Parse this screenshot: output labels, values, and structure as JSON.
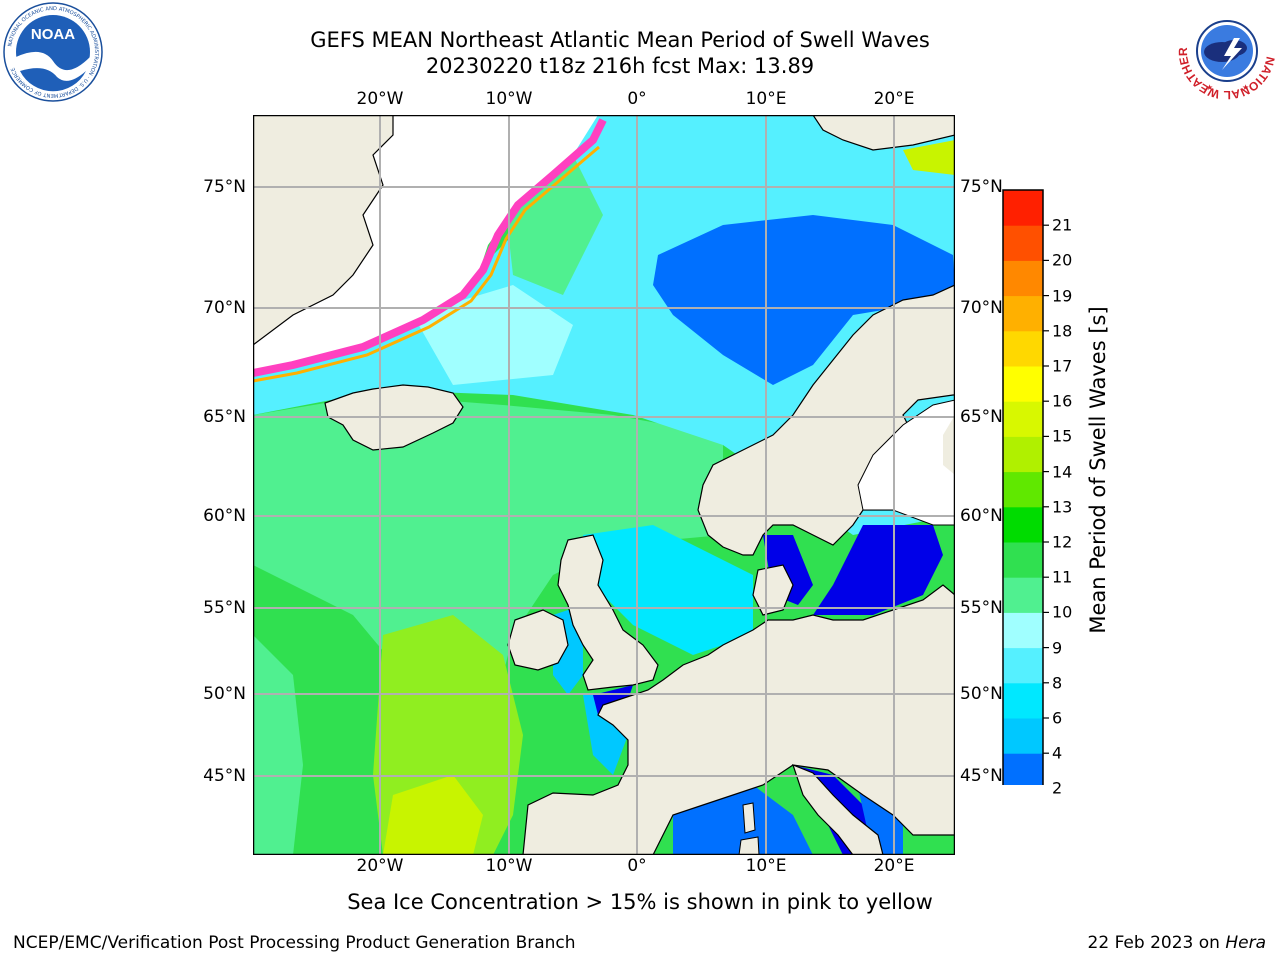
{
  "title": {
    "line1": "GEFS MEAN Northeast Atlantic Mean Period of Swell Waves",
    "line2": "20230220 t18z 216h fcst   Max: 13.89"
  },
  "map": {
    "lon_ticks": [
      "20°W",
      "10°W",
      "0°",
      "10°E",
      "20°E"
    ],
    "lat_ticks": [
      "75°N",
      "70°N",
      "65°N",
      "60°N",
      "55°N",
      "50°N",
      "45°N"
    ]
  },
  "colorbar": {
    "title": "Mean Period of Swell Waves [s]",
    "levels": [
      "2",
      "4",
      "6",
      "8",
      "9",
      "10",
      "11",
      "12",
      "13",
      "14",
      "15",
      "16",
      "17",
      "18",
      "19",
      "20",
      "21"
    ],
    "colors": [
      "#0070ff",
      "#00c8ff",
      "#00e8ff",
      "#55f0ff",
      "#a0ffff",
      "#50f090",
      "#30e050",
      "#00dc00",
      "#60e800",
      "#b0f000",
      "#d8f800",
      "#ffff00",
      "#ffd800",
      "#ffb000",
      "#ff8800",
      "#ff5000",
      "#ff2000"
    ],
    "under_color": "#0000e8"
  },
  "note": "Sea Ice Concentration > 15% is shown in pink to yellow",
  "footer": {
    "left": "NCEP/EMC/Verification Post Processing Product Generation Branch",
    "right_date": "22 Feb 2023 on ",
    "right_host": "Hera"
  },
  "logos": {
    "noaa_text": "NOAA",
    "noaa_ring": "NATIONAL OCEANIC AND ATMOSPHERIC ADMINISTRATION · U.S. DEPARTMENT OF COMMERCE",
    "nws_ring": "NATIONAL WEATHER SERVICE"
  }
}
